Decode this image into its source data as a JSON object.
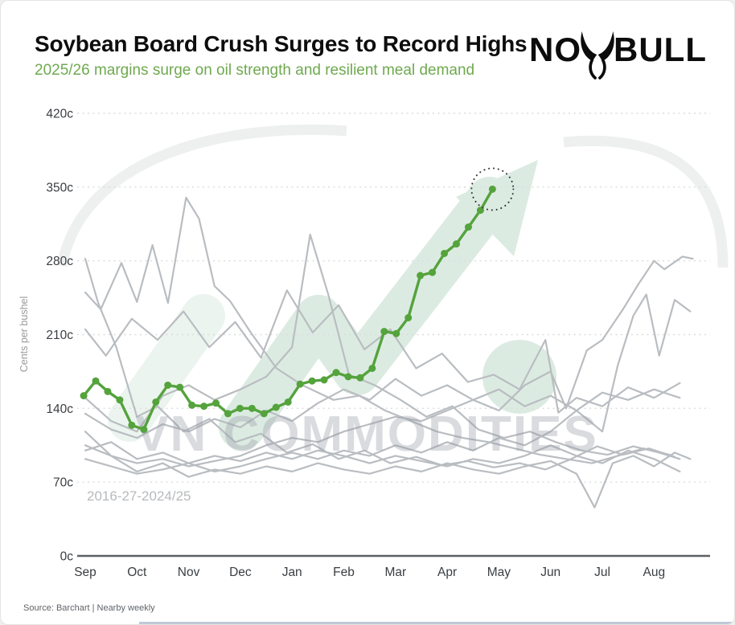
{
  "header": {
    "brand_left": "NO",
    "brand_right": "BULL"
  },
  "footer": {
    "source": "Source: Barchart | Nearby weekly"
  },
  "watermark": {
    "text": "VN COMMODITIES"
  },
  "colors": {
    "accent_green": "#54a33c",
    "subtitle_green": "#6fa94f",
    "context_gray": "#b9bdc1",
    "mint_watermark": "#dcebe2"
  },
  "chart_data": {
    "type": "line",
    "title": "Soybean Board Crush Surges to Record Highs",
    "subtitle": "2025/26 margins surge on oil strength and resilient meal demand",
    "ylabel": "Cents per bushel",
    "xlabel": "",
    "grid": "horizontal-dotted",
    "legend_position": "none",
    "ylim": [
      0,
      435
    ],
    "y_ticks": {
      "values": [
        0,
        70,
        140,
        210,
        280,
        350,
        420
      ],
      "labels": [
        "0c",
        "70c",
        "140c",
        "210c",
        "280c",
        "350c",
        "420c"
      ]
    },
    "x_tick_labels": [
      "Sep",
      "Oct",
      "Nov",
      "Dec",
      "Jan",
      "Feb",
      "Mar",
      "Apr",
      "May",
      "Jun",
      "Jul",
      "Aug"
    ],
    "context_label": "2016-27-2024/25",
    "highlight_series": {
      "name": "2025/26",
      "cadence": "weekly",
      "start_month_offset": -0.03,
      "month_step_per_week": 0.2325,
      "values": [
        152,
        166,
        156,
        148,
        124,
        120,
        146,
        162,
        160,
        143,
        142,
        145,
        135,
        140,
        140,
        135,
        141,
        146,
        163,
        166,
        167,
        174,
        170,
        169,
        178,
        213,
        211,
        226,
        266,
        269,
        287,
        296,
        312,
        328,
        348
      ]
    },
    "annotation": {
      "style": "dotted-circle",
      "target": "last-point"
    },
    "context_series": [
      {
        "x_months": [
          0,
          0.3,
          0.7,
          1.0,
          1.3,
          1.6,
          1.95,
          2.2,
          2.5,
          2.8,
          3.2,
          3.7,
          4.2,
          4.8,
          5.3,
          5.8,
          6.3,
          6.8,
          7.3,
          7.8,
          8.3,
          8.8,
          9.3,
          9.8,
          10.3,
          10.8,
          11.3
        ],
        "values": [
          250,
          234,
          278,
          241,
          295,
          240,
          340,
          320,
          256,
          242,
          212,
          178,
          162,
          148,
          152,
          138,
          128,
          118,
          112,
          108,
          102,
          96,
          92,
          88,
          95,
          102,
          96
        ]
      },
      {
        "x_months": [
          0,
          0.25,
          0.6,
          1.0,
          1.4,
          1.9,
          2.4,
          2.9,
          3.4,
          3.9,
          4.4,
          4.9,
          5.4,
          5.9,
          6.4,
          6.9,
          7.4,
          7.9,
          8.4,
          8.9,
          9.4,
          9.9,
          10.4,
          10.9,
          11.4
        ],
        "values": [
          282,
          240,
          198,
          132,
          142,
          118,
          130,
          108,
          116,
          98,
          106,
          92,
          100,
          88,
          94,
          86,
          90,
          84,
          88,
          82,
          92,
          104,
          96,
          102,
          94
        ]
      },
      {
        "x_months": [
          0,
          0.5,
          1,
          1.5,
          2,
          2.5,
          3,
          3.5,
          4.0,
          4.35,
          4.7,
          5.1,
          5.6,
          6.1,
          6.6,
          7.1,
          7.6,
          8.1,
          8.6,
          9.1,
          9.6,
          10.1,
          10.6,
          11.1,
          11.5
        ],
        "values": [
          150,
          128,
          118,
          152,
          162,
          148,
          158,
          170,
          198,
          305,
          248,
          172,
          162,
          148,
          132,
          142,
          120,
          112,
          118,
          108,
          100,
          96,
          104,
          98,
          92
        ]
      },
      {
        "x_months": [
          0,
          0.4,
          0.9,
          1.4,
          1.9,
          2.4,
          2.9,
          3.4,
          3.9,
          4.4,
          4.9,
          5.4,
          5.9,
          6.4,
          6.9,
          7.4,
          7.9,
          8.4,
          8.9,
          9.15,
          9.5,
          10,
          10.5,
          11,
          11.5
        ],
        "values": [
          215,
          190,
          225,
          205,
          232,
          198,
          222,
          188,
          252,
          212,
          238,
          196,
          215,
          178,
          192,
          165,
          172,
          158,
          205,
          136,
          150,
          142,
          160,
          150,
          164
        ]
      },
      {
        "x_months": [
          0,
          0.5,
          1,
          1.5,
          2,
          2.5,
          3,
          3.5,
          4,
          4.5,
          5,
          5.5,
          6,
          6.5,
          7,
          7.5,
          8,
          8.5,
          9,
          9.3,
          9.7,
          10.0,
          10.4,
          10.7,
          11.0,
          11.2,
          11.55,
          11.75
        ],
        "values": [
          105,
          95,
          88,
          92,
          85,
          90,
          95,
          105,
          112,
          108,
          118,
          125,
          132,
          128,
          138,
          148,
          138,
          162,
          175,
          140,
          195,
          205,
          234,
          258,
          280,
          272,
          284,
          282
        ]
      },
      {
        "x_months": [
          0,
          0.5,
          1,
          1.5,
          2,
          2.5,
          3,
          3.5,
          4,
          4.5,
          5,
          5.5,
          6,
          6.5,
          7,
          7.5,
          8,
          8.5,
          9,
          9.5,
          10,
          10.3,
          10.6,
          10.85,
          11.1,
          11.4,
          11.7
        ],
        "values": [
          92,
          85,
          78,
          82,
          88,
          80,
          85,
          92,
          98,
          92,
          100,
          95,
          105,
          98,
          108,
          100,
          112,
          105,
          118,
          138,
          118,
          181,
          228,
          248,
          190,
          243,
          232
        ]
      },
      {
        "x_months": [
          0,
          0.5,
          1,
          1.5,
          2,
          2.5,
          3,
          3.5,
          4,
          4.5,
          5,
          5.5,
          6,
          6.5,
          7,
          7.5,
          8,
          8.5,
          9,
          9.5,
          9.85,
          10.2,
          10.6,
          11,
          11.4,
          11.7
        ],
        "values": [
          118,
          95,
          80,
          88,
          75,
          82,
          78,
          85,
          80,
          88,
          82,
          78,
          85,
          80,
          88,
          82,
          78,
          85,
          90,
          78,
          46,
          88,
          95,
          85,
          98,
          92
        ]
      },
      {
        "x_months": [
          0,
          0.5,
          1,
          1.5,
          2,
          2.5,
          3,
          3.5,
          4,
          4.5,
          5,
          5.5,
          6,
          6.5,
          7,
          7.5,
          8,
          8.5,
          9,
          9.5,
          10,
          10.5,
          11,
          11.5
        ],
        "values": [
          100,
          108,
          92,
          98,
          88,
          95,
          90,
          98,
          92,
          100,
          95,
          88,
          95,
          90,
          85,
          92,
          88,
          95,
          105,
          95,
          88,
          100,
          92,
          80
        ]
      },
      {
        "x_months": [
          0,
          0.5,
          1,
          1.5,
          2,
          2.5,
          3,
          3.5,
          4,
          4.5,
          5,
          5.5,
          6,
          6.5,
          7,
          7.5,
          8,
          8.5,
          9,
          9.5,
          10,
          10.5,
          11,
          11.5
        ],
        "values": [
          135,
          120,
          112,
          125,
          118,
          130,
          122,
          138,
          128,
          145,
          158,
          148,
          168,
          152,
          162,
          148,
          158,
          142,
          152,
          138,
          155,
          148,
          158,
          150
        ]
      }
    ]
  }
}
